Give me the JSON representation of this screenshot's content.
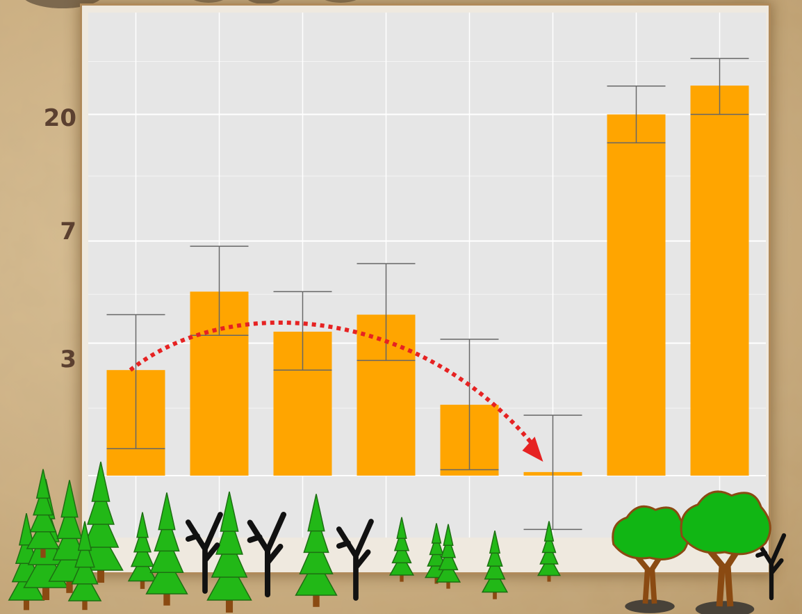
{
  "chart_data": {
    "type": "bar",
    "scale": "log",
    "grid": true,
    "ylim": [
      1,
      46
    ],
    "y_ticks": [
      {
        "value": 3,
        "label": "3"
      },
      {
        "value": 7,
        "label": "7"
      },
      {
        "value": 20,
        "label": "20"
      }
    ],
    "categories": [
      "",
      "",
      "",
      "",
      "",
      "",
      "",
      ""
    ],
    "values": [
      2.4,
      4.6,
      3.3,
      3.8,
      1.8,
      1.03,
      20.0,
      25.4
    ],
    "error_low": [
      1.25,
      3.2,
      2.4,
      2.6,
      1.05,
      0.64,
      15.8,
      20.0
    ],
    "error_high": [
      3.8,
      6.7,
      4.6,
      5.8,
      3.1,
      1.65,
      25.3,
      31.8
    ],
    "bar_color": "#ffa500",
    "error_color": "#666666",
    "grid_color": "#ffffff",
    "panel_color": "#e6e6e6",
    "annotation": {
      "type": "arrow",
      "style": "dotted",
      "color": "#e62222",
      "from_bar": 0,
      "to_bar": 5
    }
  },
  "background": {
    "paper_color": "#d8be93",
    "frame_color": "#b08a5a"
  },
  "scenery": {
    "pine_color": "#22b817",
    "pine_outline": "#1d6e12",
    "oak_color": "#11b614",
    "trunk_color": "#8a4a12",
    "dead_tree_color": "#111111"
  }
}
